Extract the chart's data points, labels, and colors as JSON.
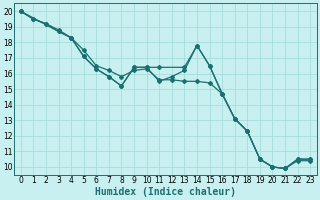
{
  "xlabel": "Humidex (Indice chaleur)",
  "bg_color": "#c8f0f0",
  "grid_color": "#a0d8d8",
  "line_color": "#1a7070",
  "xlim": [
    -0.5,
    23.5
  ],
  "ylim": [
    9.5,
    20.5
  ],
  "xticks": [
    0,
    1,
    2,
    3,
    4,
    5,
    6,
    7,
    8,
    9,
    10,
    11,
    12,
    13,
    14,
    15,
    16,
    17,
    18,
    19,
    20,
    21,
    22,
    23
  ],
  "yticks": [
    10,
    11,
    12,
    13,
    14,
    15,
    16,
    17,
    18,
    19,
    20
  ],
  "line1_x": [
    0,
    1,
    2,
    3,
    4,
    5,
    6,
    7,
    8,
    9,
    10,
    11,
    12,
    13,
    14,
    15,
    16,
    17,
    18,
    19,
    20,
    21,
    22,
    23
  ],
  "line1_y": [
    20,
    19.5,
    19.2,
    18.7,
    18.3,
    17.1,
    16.3,
    15.8,
    15.2,
    16.4,
    16.4,
    15.5,
    15.8,
    16.2,
    17.8,
    16.5,
    14.7,
    13.1,
    12.3,
    10.5,
    10.0,
    9.9,
    10.5,
    10.5
  ],
  "line2_x": [
    0,
    1,
    2,
    3,
    4,
    5,
    6,
    7,
    8,
    9,
    10,
    11,
    12,
    13,
    14,
    15,
    16,
    17,
    18,
    19,
    20,
    21,
    22,
    23
  ],
  "line2_y": [
    20,
    19.5,
    19.2,
    18.8,
    18.3,
    17.5,
    16.5,
    16.2,
    15.8,
    16.2,
    16.3,
    15.6,
    15.6,
    15.5,
    15.5,
    15.4,
    14.7,
    13.1,
    12.3,
    10.5,
    10.0,
    9.9,
    10.4,
    10.4
  ],
  "line3_x": [
    0,
    3,
    4,
    5,
    6,
    7,
    8,
    9,
    10,
    11,
    13,
    14,
    15,
    16,
    17,
    18,
    19,
    20,
    21,
    22,
    23
  ],
  "line3_y": [
    20,
    18.7,
    18.3,
    17.1,
    16.3,
    15.8,
    15.2,
    16.4,
    16.4,
    16.4,
    16.4,
    17.8,
    16.5,
    14.7,
    13.1,
    12.3,
    10.5,
    10.0,
    9.9,
    10.5,
    10.5
  ],
  "xlabel_fontsize": 7,
  "tick_fontsize": 5.5
}
